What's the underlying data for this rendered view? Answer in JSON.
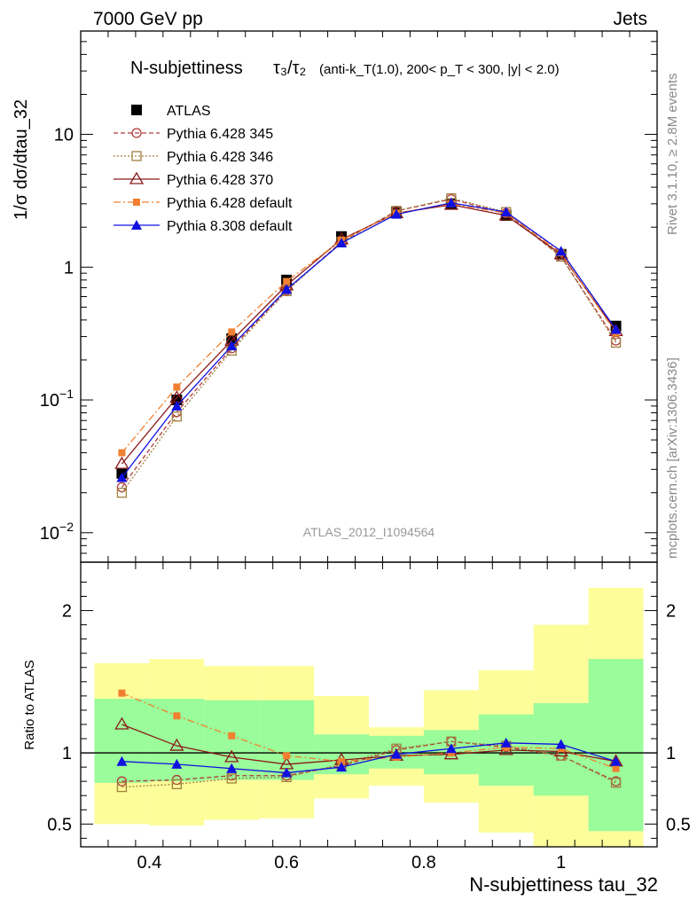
{
  "header": {
    "left": "7000 GeV pp",
    "right": "Jets"
  },
  "side_text": {
    "rivet": "Rivet 3.1.10, ≥ 2.8M events",
    "mcplots": "mcplots.cern.ch [arXiv:1306.3436]"
  },
  "colors": {
    "atlas": "#000000",
    "p345": "#b03a3a",
    "p346": "#a08040",
    "p370": "#8b1a1a",
    "p6def": "#f08030",
    "p8def": "#1010e0",
    "band_inner": "#9afc9a",
    "band_outer": "#fdfd9a"
  },
  "chart_data": [
    {
      "type": "line",
      "title": "N-subjettiness τ₃/τ₂ (anti-k_T(1.0), 200< p_T < 300, |y| < 2.0)",
      "title_parts": {
        "main": "N-subjettiness",
        "ratio": "τ₃/τ₂",
        "selection": "(anti-k_T(1.0), 200< p_T < 300, |y| < 2.0)"
      },
      "ylabel": "1/σ dσ/dtau_32",
      "yscale": "log",
      "ylim": [
        0.006,
        60
      ],
      "xlim": [
        0.3,
        1.14
      ],
      "yticks": [
        "10⁻²",
        "10⁻¹",
        "1",
        "10"
      ],
      "watermark": "ATLAS_2012_I1094564",
      "legend_position": "top-left",
      "x": [
        0.36,
        0.44,
        0.52,
        0.6,
        0.68,
        0.76,
        0.84,
        0.92,
        1.0,
        1.08
      ],
      "series": [
        {
          "name": "ATLAS",
          "values": [
            0.028,
            0.1,
            0.29,
            0.8,
            1.7,
            2.6,
            3.0,
            2.45,
            1.25,
            0.36
          ]
        },
        {
          "name": "Pythia 6.428 345",
          "values": [
            0.022,
            0.081,
            0.245,
            0.67,
            1.55,
            2.65,
            3.25,
            2.55,
            1.2,
            0.28
          ]
        },
        {
          "name": "Pythia 6.428 346",
          "values": [
            0.02,
            0.075,
            0.235,
            0.66,
            1.55,
            2.65,
            3.3,
            2.6,
            1.2,
            0.27
          ]
        },
        {
          "name": "Pythia 6.428 370",
          "values": [
            0.033,
            0.104,
            0.28,
            0.73,
            1.62,
            2.55,
            2.95,
            2.45,
            1.25,
            0.33
          ]
        },
        {
          "name": "Pythia 6.428 default",
          "values": [
            0.04,
            0.125,
            0.325,
            0.78,
            1.6,
            2.55,
            3.0,
            2.55,
            1.28,
            0.32
          ]
        },
        {
          "name": "Pythia 8.308 default",
          "values": [
            0.026,
            0.09,
            0.255,
            0.68,
            1.52,
            2.5,
            3.05,
            2.6,
            1.32,
            0.34
          ]
        }
      ]
    },
    {
      "type": "line",
      "title": "",
      "xlabel": "N-subjettiness tau_32",
      "ylabel": "Ratio to ATLAS",
      "ylim": [
        0.34,
        2.34
      ],
      "xlim": [
        0.3,
        1.14
      ],
      "xticks": [
        "0.4",
        "0.6",
        "0.8",
        "1"
      ],
      "yticks": [
        "0.5",
        "1",
        "2"
      ],
      "bin_edges": [
        0.32,
        0.4,
        0.48,
        0.56,
        0.64,
        0.72,
        0.8,
        0.88,
        0.96,
        1.04,
        1.12
      ],
      "band_inner": {
        "low": [
          0.79,
          0.8,
          0.81,
          0.81,
          0.85,
          0.89,
          0.85,
          0.77,
          0.7,
          0.45
        ],
        "high": [
          1.38,
          1.38,
          1.37,
          1.37,
          1.13,
          1.12,
          1.16,
          1.27,
          1.35,
          1.66
        ]
      },
      "band_outer": {
        "low": [
          0.5,
          0.49,
          0.53,
          0.54,
          0.68,
          0.77,
          0.65,
          0.44,
          0.3,
          0.3
        ],
        "high": [
          1.63,
          1.66,
          1.61,
          1.61,
          1.4,
          1.18,
          1.44,
          1.58,
          1.9,
          2.16
        ]
      },
      "x": [
        0.36,
        0.44,
        0.52,
        0.6,
        0.68,
        0.76,
        0.84,
        0.92,
        1.0,
        1.08
      ],
      "series": [
        {
          "name": "Pythia 6.428 345",
          "values": [
            0.8,
            0.81,
            0.84,
            0.84,
            0.91,
            1.02,
            1.08,
            1.04,
            0.98,
            0.8
          ]
        },
        {
          "name": "Pythia 6.428 346",
          "values": [
            0.76,
            0.78,
            0.82,
            0.83,
            0.92,
            1.03,
            1.08,
            1.05,
            0.98,
            0.79
          ]
        },
        {
          "name": "Pythia 6.428 370",
          "values": [
            1.2,
            1.05,
            0.97,
            0.92,
            0.95,
            0.98,
            0.99,
            1.02,
            1.01,
            0.94
          ]
        },
        {
          "name": "Pythia 6.428 default",
          "values": [
            1.42,
            1.26,
            1.12,
            0.98,
            0.94,
            0.97,
            1.0,
            1.04,
            1.03,
            0.89
          ]
        },
        {
          "name": "Pythia 8.308 default",
          "values": [
            0.94,
            0.92,
            0.89,
            0.86,
            0.9,
            0.99,
            1.03,
            1.07,
            1.06,
            0.94
          ]
        }
      ]
    }
  ]
}
